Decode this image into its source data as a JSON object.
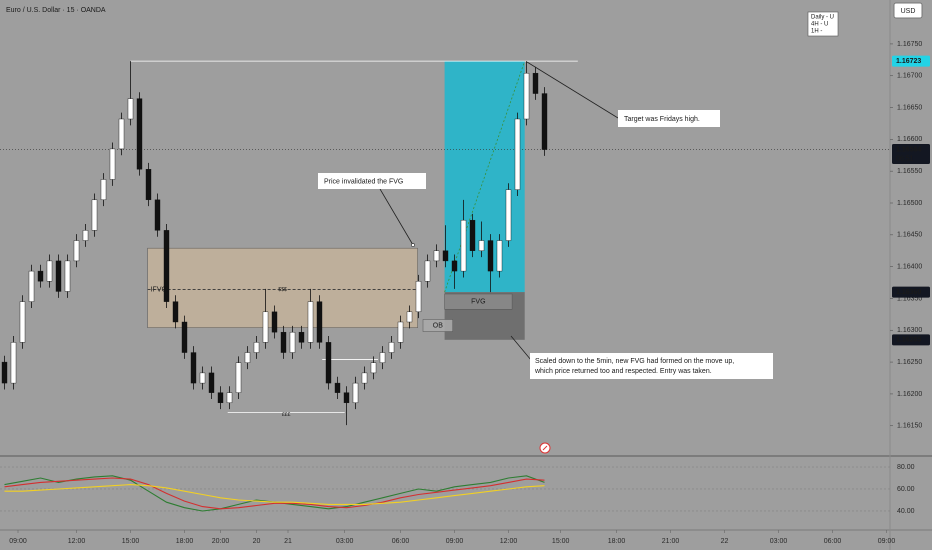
{
  "chart_data": {
    "type": "candlestick",
    "title": "Euro / U.S. Dollar · 15 · OANDA",
    "currency": "USD",
    "bias": [
      "Daily - U",
      "4H - U",
      "1H -"
    ],
    "xlim": [
      -0.5,
      98.5
    ],
    "xticks": [
      {
        "value": 1.5,
        "label": "09:00"
      },
      {
        "value": 8,
        "label": "12:00"
      },
      {
        "value": 14,
        "label": "15:00"
      },
      {
        "value": 20,
        "label": "18:00"
      },
      {
        "value": 24,
        "label": "20:00"
      },
      {
        "value": 28,
        "label": "20"
      },
      {
        "value": 31.5,
        "label": "21"
      },
      {
        "value": 37.8,
        "label": "03:00"
      },
      {
        "value": 44,
        "label": "06:00"
      },
      {
        "value": 50,
        "label": "09:00"
      },
      {
        "value": 56,
        "label": "12:00"
      },
      {
        "value": 61.8,
        "label": "15:00"
      },
      {
        "value": 68,
        "label": "18:00"
      },
      {
        "value": 74,
        "label": "21:00"
      },
      {
        "value": 80,
        "label": "22"
      },
      {
        "value": 86,
        "label": "03:00"
      },
      {
        "value": 92,
        "label": "06:00"
      },
      {
        "value": 98,
        "label": "09:00"
      }
    ],
    "ylim": [
      1.16104,
      1.16819
    ],
    "yticks": [
      {
        "value": 1.1615,
        "label": "1.16150"
      },
      {
        "value": 1.162,
        "label": "1.16200"
      },
      {
        "value": 1.1625,
        "label": "1.16250"
      },
      {
        "value": 1.163,
        "label": "1.16300"
      },
      {
        "value": 1.1635,
        "label": "1.16350"
      },
      {
        "value": 1.164,
        "label": "1.16400"
      },
      {
        "value": 1.1645,
        "label": "1.16450"
      },
      {
        "value": 1.165,
        "label": "1.16500"
      },
      {
        "value": 1.1655,
        "label": "1.16550"
      },
      {
        "value": 1.166,
        "label": "1.16600"
      },
      {
        "value": 1.1665,
        "label": "1.16650"
      },
      {
        "value": 1.167,
        "label": "1.16700"
      },
      {
        "value": 1.1675,
        "label": "1.16750"
      }
    ],
    "grid": false,
    "up_color": "#ffffff",
    "down_color": "#111111",
    "open": [
      1.1625,
      1.16217,
      1.16281,
      1.16345,
      1.16393,
      1.16377,
      1.16409,
      1.16361,
      1.16409,
      1.16441,
      1.16457,
      1.16505,
      1.16537,
      1.16585,
      1.16632,
      1.16664,
      1.16553,
      1.16505,
      1.16457,
      1.16345,
      1.16313,
      1.16265,
      1.16217,
      1.16233,
      1.16202,
      1.16186,
      1.16202,
      1.16249,
      1.16265,
      1.16281,
      1.16329,
      1.16297,
      1.16265,
      1.16297,
      1.16281,
      1.16345,
      1.16281,
      1.16217,
      1.16202,
      1.16186,
      1.16217,
      1.16233,
      1.16249,
      1.16265,
      1.16281,
      1.16313,
      1.16329,
      1.16377,
      1.16409,
      1.16425,
      1.16409,
      1.16393,
      1.16473,
      1.16425,
      1.16441,
      1.16393,
      1.16441,
      1.16521,
      1.16632,
      1.16704,
      1.16672
    ],
    "high": [
      1.1626,
      1.16291,
      1.16355,
      1.16403,
      1.16403,
      1.16419,
      1.16419,
      1.16419,
      1.16451,
      1.16467,
      1.16515,
      1.16547,
      1.16595,
      1.16642,
      1.16723,
      1.16674,
      1.16563,
      1.16515,
      1.16467,
      1.16355,
      1.16323,
      1.16275,
      1.16243,
      1.16243,
      1.16212,
      1.16212,
      1.16259,
      1.16275,
      1.16291,
      1.16365,
      1.16339,
      1.16307,
      1.16307,
      1.16307,
      1.16365,
      1.16355,
      1.16291,
      1.16227,
      1.16212,
      1.16227,
      1.16243,
      1.16259,
      1.16275,
      1.16291,
      1.16323,
      1.16339,
      1.16387,
      1.16419,
      1.16435,
      1.16465,
      1.16419,
      1.16505,
      1.16483,
      1.16471,
      1.16451,
      1.16451,
      1.16531,
      1.16642,
      1.16723,
      1.16714,
      1.16682
    ],
    "low": [
      1.16207,
      1.16207,
      1.16271,
      1.16335,
      1.16367,
      1.16367,
      1.16351,
      1.16351,
      1.16399,
      1.16431,
      1.16447,
      1.16495,
      1.16527,
      1.16575,
      1.16622,
      1.16543,
      1.16495,
      1.16447,
      1.16335,
      1.16303,
      1.16255,
      1.16207,
      1.16207,
      1.16192,
      1.16176,
      1.16176,
      1.16192,
      1.16239,
      1.16255,
      1.16271,
      1.16287,
      1.16255,
      1.16255,
      1.16271,
      1.16271,
      1.16271,
      1.16207,
      1.16192,
      1.16151,
      1.16176,
      1.16207,
      1.16223,
      1.16239,
      1.16255,
      1.16271,
      1.16303,
      1.16319,
      1.16367,
      1.16399,
      1.16399,
      1.16365,
      1.16383,
      1.16415,
      1.16415,
      1.1636,
      1.16383,
      1.16431,
      1.16511,
      1.16622,
      1.16662,
      1.16574
    ],
    "close": [
      1.16217,
      1.16281,
      1.16345,
      1.16393,
      1.16377,
      1.16409,
      1.16361,
      1.16409,
      1.16441,
      1.16457,
      1.16505,
      1.16537,
      1.16585,
      1.16632,
      1.16664,
      1.16553,
      1.16505,
      1.16457,
      1.16345,
      1.16313,
      1.16265,
      1.16217,
      1.16233,
      1.16202,
      1.16186,
      1.16202,
      1.16249,
      1.16265,
      1.16281,
      1.16329,
      1.16297,
      1.16265,
      1.16297,
      1.16281,
      1.16345,
      1.16281,
      1.16217,
      1.16202,
      1.16186,
      1.16217,
      1.16233,
      1.16249,
      1.16265,
      1.16281,
      1.16313,
      1.16329,
      1.16377,
      1.16409,
      1.16425,
      1.16409,
      1.16393,
      1.16473,
      1.16425,
      1.16441,
      1.16393,
      1.16441,
      1.16521,
      1.16632,
      1.16704,
      1.16672,
      1.16584
    ],
    "price_markers": [
      1.16723,
      1.16584,
      {
        "value": 1.1636,
        "label": "1.16360"
      },
      1.16285
    ],
    "price_marker_colors": [
      "#22d3e6",
      "#131722",
      "#131722",
      "#131722"
    ],
    "countdown": "06:51",
    "zones": [
      {
        "label": "IFVG",
        "x": [
          15.9,
          45.9
        ],
        "y": [
          1.16304,
          1.16429
        ],
        "color": "#c8b49a"
      },
      {
        "label": "FVG",
        "x": [
          48.9,
          56.4
        ],
        "y": [
          1.16333,
          1.16357
        ],
        "color": "#8a8a8a"
      },
      {
        "label": "OB",
        "x": [
          46.5,
          49.8
        ],
        "y": [
          1.16298,
          1.16317
        ],
        "color": "#a8a8a8"
      }
    ],
    "position": {
      "x": [
        48.9,
        57.8
      ],
      "entry": 1.1636,
      "target": 1.16723,
      "stop": 1.16285,
      "target_color": "#2fb4c8",
      "stop_color": "#6f6f6f"
    },
    "levels": [
      {
        "value": 1.16723,
        "x": [
          14,
          63.7
        ]
      },
      {
        "value": 1.16364,
        "x": [
          15.9,
          45.9
        ],
        "label": "$$$"
      },
      {
        "value": 1.16171,
        "x": [
          24.8,
          37.8
        ],
        "label": "£££"
      },
      {
        "value": 1.16254,
        "x": [
          35.3,
          41.5
        ]
      }
    ],
    "annotations": [
      {
        "text": "Price invalidated the FVG"
      },
      {
        "text": "Target was Fridays high."
      },
      {
        "text": [
          "Scaled down to the 5min, new FVG had formed on the move up,",
          "which price returned too and respected. Entry was taken."
        ]
      }
    ],
    "indicator": {
      "ylim": [
        24.5,
        88.2
      ],
      "yticks": [
        {
          "value": 40,
          "label": "40.00"
        },
        {
          "value": 60,
          "label": "60.00"
        },
        {
          "value": 80,
          "label": "80.00"
        }
      ],
      "x": [
        0,
        2,
        4,
        6,
        8,
        10,
        12,
        14,
        16,
        18,
        20,
        22,
        24,
        26,
        28,
        30,
        32,
        34,
        36,
        38,
        40,
        42,
        44,
        46,
        48,
        50,
        52,
        54,
        56,
        58,
        60
      ],
      "series": [
        {
          "color": "#2e7d32",
          "values": [
            64,
            67,
            70,
            66,
            69,
            71,
            72,
            68,
            58,
            48,
            43,
            40,
            42,
            46,
            50,
            48,
            46,
            44,
            42,
            44,
            48,
            52,
            56,
            60,
            58,
            62,
            64,
            66,
            70,
            72,
            66
          ]
        },
        {
          "color": "#d32f2f",
          "values": [
            62,
            64,
            66,
            67,
            68,
            69,
            70,
            69,
            64,
            56,
            49,
            44,
            42,
            43,
            45,
            47,
            47,
            46,
            44,
            43,
            45,
            48,
            52,
            55,
            57,
            59,
            61,
            63,
            66,
            69,
            68
          ]
        },
        {
          "color": "#f2d024",
          "values": [
            58,
            58,
            59,
            60,
            61,
            62,
            63,
            64,
            63,
            61,
            58,
            55,
            52,
            50,
            49,
            48,
            48,
            47,
            46,
            46,
            46,
            47,
            48,
            50,
            52,
            54,
            56,
            58,
            60,
            62,
            63
          ]
        }
      ]
    }
  }
}
